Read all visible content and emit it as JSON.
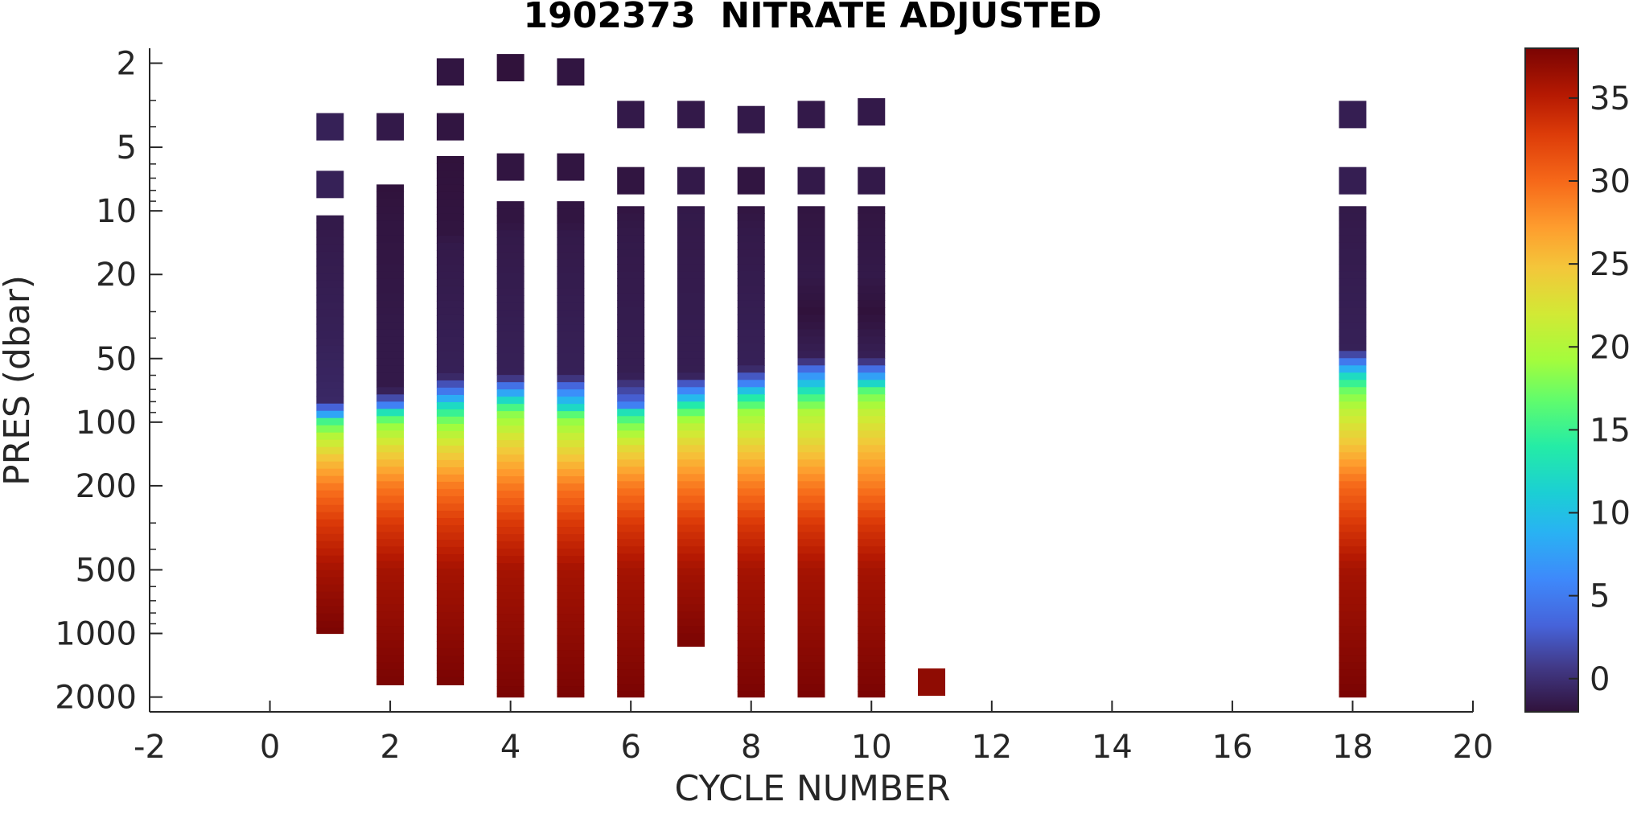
{
  "chart_data": {
    "type": "heatmap",
    "title": "1902373  NITRATE ADJUSTED",
    "xlabel": "CYCLE NUMBER",
    "ylabel": "PRES (dbar)",
    "xlim": [
      -2,
      20
    ],
    "ylim": [
      1.7,
      2350
    ],
    "yscale": "log",
    "yreverse": true,
    "grid": false,
    "x_ticks": [
      -2,
      0,
      2,
      4,
      6,
      8,
      10,
      12,
      14,
      16,
      18,
      20
    ],
    "y_ticks": [
      2,
      5,
      10,
      20,
      50,
      100,
      200,
      500,
      1000,
      2000
    ],
    "colorbar": {
      "colormap": "turbo",
      "clim": [
        -2,
        38
      ],
      "ticks": [
        0,
        5,
        10,
        15,
        20,
        25,
        30,
        35
      ]
    },
    "profiles": [
      {
        "cycle": 1,
        "isolated": [
          [
            4,
            -1
          ],
          [
            7.5,
            -1
          ]
        ],
        "top": 10.5,
        "bottom": 1000,
        "stops": [
          [
            10.5,
            -1.5
          ],
          [
            40,
            -1
          ],
          [
            80,
            -0.5
          ],
          [
            92,
            8
          ],
          [
            98,
            15
          ],
          [
            115,
            20
          ],
          [
            150,
            25
          ],
          [
            200,
            29
          ],
          [
            300,
            33
          ],
          [
            500,
            36
          ],
          [
            1000,
            38
          ]
        ]
      },
      {
        "cycle": 2,
        "isolated": [
          [
            4,
            -1.5
          ]
        ],
        "top": 7.5,
        "bottom": 1750,
        "stops": [
          [
            7.5,
            -2
          ],
          [
            11,
            -1.8
          ],
          [
            12,
            -1.8
          ],
          [
            40,
            -1.5
          ],
          [
            70,
            -1.5
          ],
          [
            82,
            4
          ],
          [
            90,
            13
          ],
          [
            100,
            18
          ],
          [
            130,
            23
          ],
          [
            200,
            29
          ],
          [
            300,
            33
          ],
          [
            500,
            36
          ],
          [
            1750,
            38
          ]
        ]
      },
      {
        "cycle": 3,
        "isolated": [
          [
            2.2,
            -1.8
          ],
          [
            4,
            -1.8
          ]
        ],
        "top": 5.5,
        "bottom": 1750,
        "stops": [
          [
            5.5,
            -2
          ],
          [
            13,
            -1.8
          ],
          [
            14,
            -1.5
          ],
          [
            60,
            -1
          ],
          [
            72,
            5
          ],
          [
            85,
            13
          ],
          [
            100,
            18
          ],
          [
            130,
            23
          ],
          [
            200,
            29
          ],
          [
            300,
            33
          ],
          [
            500,
            36
          ],
          [
            1750,
            38
          ]
        ]
      },
      {
        "cycle": 4,
        "isolated": [
          [
            2.1,
            -2
          ],
          [
            6.2,
            -1.8
          ]
        ],
        "top": 9,
        "bottom": 2000,
        "stops": [
          [
            9,
            -1.8
          ],
          [
            11.5,
            -1.8
          ],
          [
            12.5,
            -1.5
          ],
          [
            60,
            -1
          ],
          [
            70,
            6
          ],
          [
            80,
            13
          ],
          [
            90,
            18
          ],
          [
            130,
            24
          ],
          [
            200,
            29
          ],
          [
            300,
            33
          ],
          [
            500,
            36
          ],
          [
            2000,
            38
          ]
        ]
      },
      {
        "cycle": 5,
        "isolated": [
          [
            2.2,
            -1.8
          ],
          [
            6.2,
            -1.8
          ]
        ],
        "top": 9,
        "bottom": 2000,
        "stops": [
          [
            9,
            -1.8
          ],
          [
            11.5,
            -1.8
          ],
          [
            12.5,
            -1.5
          ],
          [
            60,
            -1
          ],
          [
            72,
            6
          ],
          [
            85,
            12
          ],
          [
            95,
            18
          ],
          [
            130,
            23
          ],
          [
            200,
            29
          ],
          [
            300,
            33
          ],
          [
            500,
            36
          ],
          [
            2000,
            38
          ]
        ]
      },
      {
        "cycle": 6,
        "isolated": [
          [
            3.5,
            -1.5
          ],
          [
            7.2,
            -1.8
          ]
        ],
        "top": 9.5,
        "bottom": 2000,
        "stops": [
          [
            9.5,
            -1.8
          ],
          [
            13,
            -1.5
          ],
          [
            60,
            -1.2
          ],
          [
            82,
            4
          ],
          [
            90,
            13
          ],
          [
            100,
            17
          ],
          [
            130,
            23
          ],
          [
            200,
            29
          ],
          [
            300,
            33
          ],
          [
            500,
            36
          ],
          [
            2000,
            38
          ]
        ]
      },
      {
        "cycle": 7,
        "isolated": [
          [
            3.5,
            -1.5
          ],
          [
            7.2,
            -1.5
          ]
        ],
        "top": 9.5,
        "bottom": 1150,
        "stops": [
          [
            9.5,
            -1.5
          ],
          [
            60,
            -1.2
          ],
          [
            75,
            8
          ],
          [
            85,
            15
          ],
          [
            100,
            20
          ],
          [
            130,
            24
          ],
          [
            200,
            29
          ],
          [
            300,
            33
          ],
          [
            500,
            36
          ],
          [
            1150,
            38
          ]
        ]
      },
      {
        "cycle": 8,
        "isolated": [
          [
            3.7,
            -1.5
          ],
          [
            7.2,
            -1.8
          ]
        ],
        "top": 9.5,
        "bottom": 2000,
        "stops": [
          [
            9.5,
            -1.8
          ],
          [
            12.5,
            -1.5
          ],
          [
            55,
            -1
          ],
          [
            65,
            5
          ],
          [
            75,
            13
          ],
          [
            90,
            19
          ],
          [
            130,
            24
          ],
          [
            200,
            29
          ],
          [
            300,
            33
          ],
          [
            500,
            36
          ],
          [
            2000,
            38
          ]
        ]
      },
      {
        "cycle": 9,
        "isolated": [
          [
            3.5,
            -1.5
          ],
          [
            7.2,
            -1.5
          ]
        ],
        "top": 9.5,
        "bottom": 2000,
        "stops": [
          [
            9.5,
            -1.8
          ],
          [
            20,
            -1.5
          ],
          [
            30,
            -2
          ],
          [
            50,
            -1
          ],
          [
            62,
            8
          ],
          [
            75,
            15
          ],
          [
            90,
            20
          ],
          [
            130,
            24
          ],
          [
            200,
            29
          ],
          [
            300,
            33
          ],
          [
            500,
            36
          ],
          [
            2000,
            38
          ]
        ]
      },
      {
        "cycle": 10,
        "isolated": [
          [
            3.4,
            -1.5
          ],
          [
            7.2,
            -1.5
          ]
        ],
        "top": 9.5,
        "bottom": 2000,
        "stops": [
          [
            9.5,
            -1.8
          ],
          [
            20,
            -1.5
          ],
          [
            30,
            -2
          ],
          [
            50,
            -1
          ],
          [
            60,
            7
          ],
          [
            72,
            17
          ],
          [
            90,
            21
          ],
          [
            130,
            25
          ],
          [
            200,
            29
          ],
          [
            300,
            33
          ],
          [
            500,
            36
          ],
          [
            2000,
            38
          ]
        ]
      },
      {
        "cycle": 11,
        "isolated": [
          [
            1700,
            37
          ]
        ],
        "top": null,
        "bottom": null,
        "stops": []
      },
      {
        "cycle": 18,
        "isolated": [
          [
            3.5,
            -1.2
          ],
          [
            7.2,
            -1.2
          ]
        ],
        "top": 9.5,
        "bottom": 2000,
        "stops": [
          [
            9.5,
            -1.5
          ],
          [
            45,
            -1
          ],
          [
            52,
            5
          ],
          [
            60,
            12
          ],
          [
            70,
            17
          ],
          [
            90,
            21
          ],
          [
            130,
            25
          ],
          [
            200,
            30
          ],
          [
            300,
            33
          ],
          [
            500,
            36
          ],
          [
            2000,
            38
          ]
        ]
      }
    ]
  }
}
